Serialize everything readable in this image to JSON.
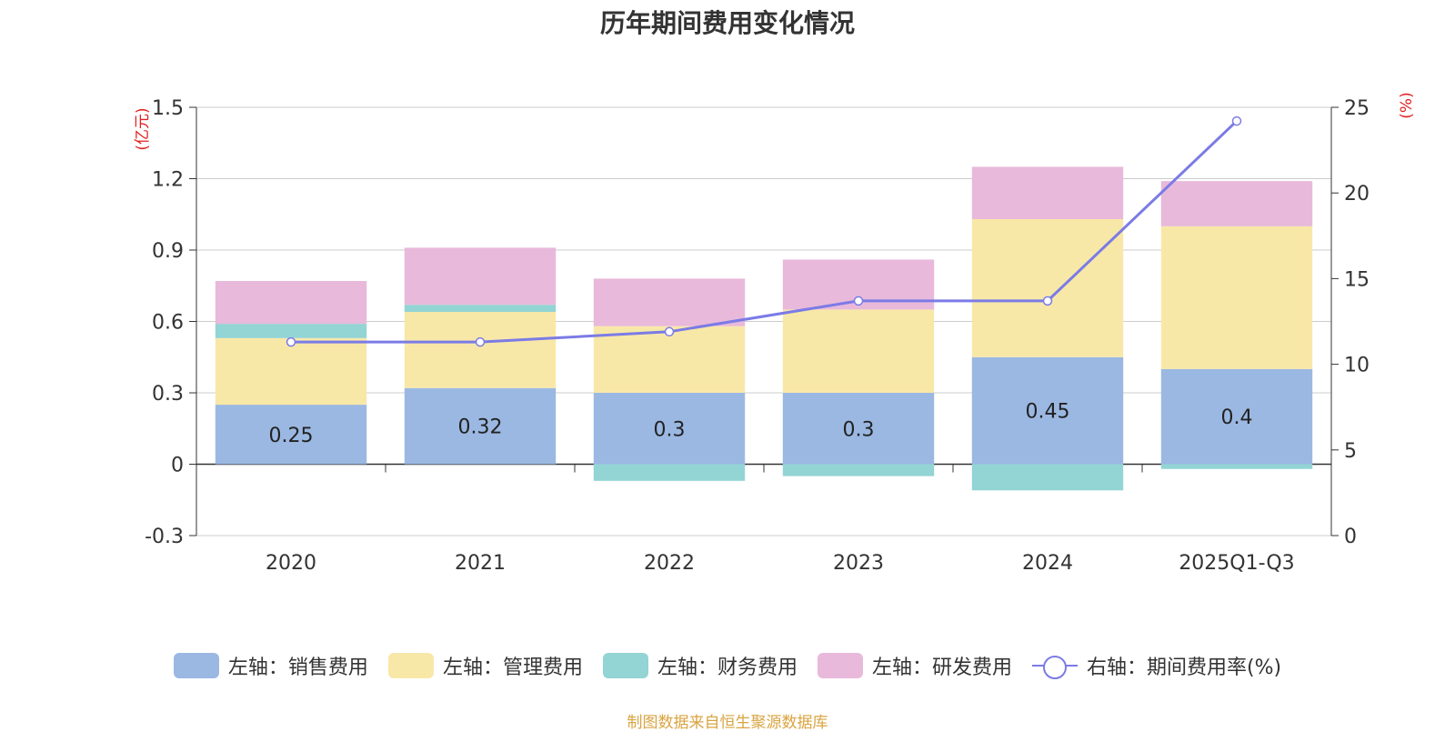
{
  "chart_data": {
    "type": "bar",
    "stacked": true,
    "title": "历年期间费用变化情况",
    "categories": [
      "2020",
      "2021",
      "2022",
      "2023",
      "2024",
      "2025Q1-Q3"
    ],
    "left_axis": {
      "unit": "(亿元)",
      "ylim": [
        -0.3,
        1.5
      ],
      "ticks": [
        "-0.3",
        "0",
        "0.3",
        "0.6",
        "0.9",
        "1.2",
        "1.5"
      ]
    },
    "right_axis": {
      "unit": "(%)",
      "ylim": [
        0,
        25
      ],
      "ticks": [
        "0",
        "5",
        "10",
        "15",
        "20",
        "25"
      ]
    },
    "series": [
      {
        "name": "左轴：销售费用",
        "axis": "left",
        "color": "#9bb8e2",
        "values": [
          0.25,
          0.32,
          0.3,
          0.3,
          0.45,
          0.4
        ],
        "labels": [
          "0.25",
          "0.32",
          "0.3",
          "0.3",
          "0.45",
          "0.4"
        ]
      },
      {
        "name": "左轴：管理费用",
        "axis": "left",
        "color": "#f8e8a8",
        "values": [
          0.28,
          0.32,
          0.28,
          0.35,
          0.58,
          0.6
        ]
      },
      {
        "name": "左轴：财务费用",
        "axis": "left",
        "color": "#93d4d4",
        "values": [
          0.06,
          0.03,
          -0.07,
          -0.05,
          -0.11,
          -0.02
        ]
      },
      {
        "name": "左轴：研发费用",
        "axis": "left",
        "color": "#e8b9da",
        "values": [
          0.18,
          0.24,
          0.2,
          0.21,
          0.22,
          0.19
        ]
      },
      {
        "name": "右轴：期间费用率(%)",
        "axis": "right",
        "type": "line",
        "color": "#7b7be6",
        "values": [
          11.3,
          11.3,
          11.9,
          13.7,
          13.7,
          24.2
        ]
      }
    ]
  },
  "source": "制图数据来自恒生聚源数据库"
}
